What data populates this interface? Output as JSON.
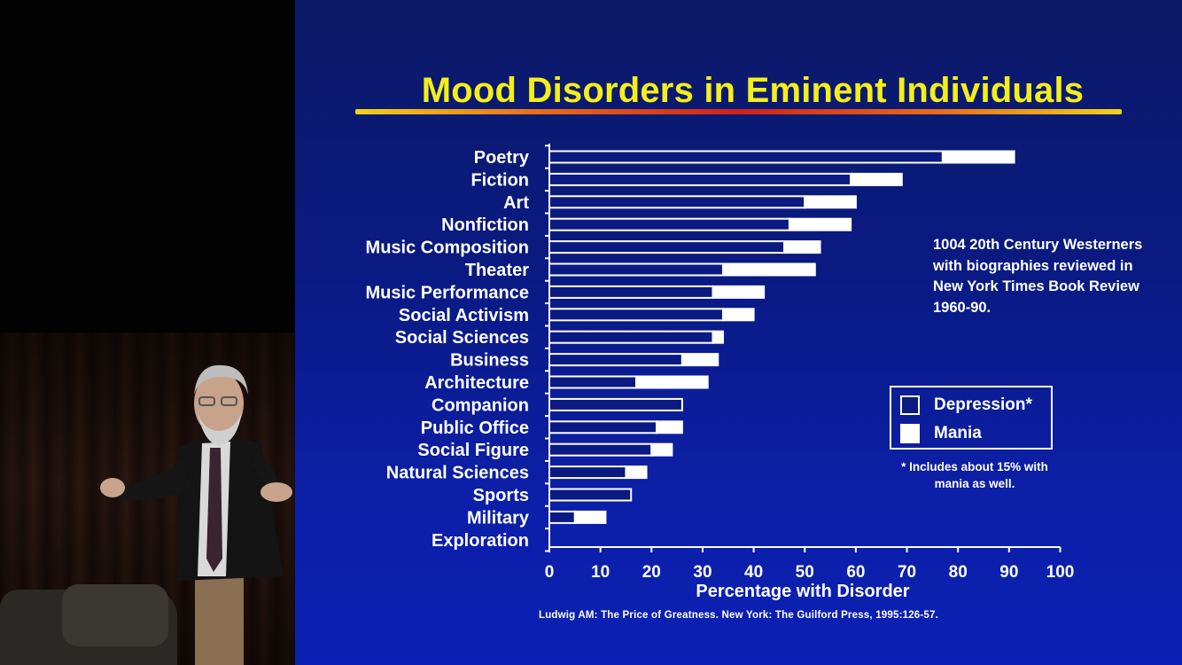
{
  "slide": {
    "title": "Mood Disorders in Eminent Individuals",
    "note": "1004 20th Century Westerners with biographies reviewed in New York Times Book Review 1960-90.",
    "legend": {
      "depression": "Depression*",
      "mania": "Mania"
    },
    "footnote": "* Includes about 15% with mania as well.",
    "citation": "Ludwig AM: The Price of Greatness. New York: The Guilford Press, 1995:126-57."
  },
  "colors": {
    "background": "#0a1a82",
    "title": "#f5ee1a",
    "depression": "#0a1a82",
    "mania": "#ffffff"
  },
  "chart_data": {
    "type": "bar",
    "orientation": "horizontal",
    "stacked": true,
    "categories": [
      "Poetry",
      "Fiction",
      "Art",
      "Nonfiction",
      "Music Composition",
      "Theater",
      "Music Performance",
      "Social Activism",
      "Social Sciences",
      "Business",
      "Architecture",
      "Companion",
      "Public Office",
      "Social Figure",
      "Natural Sciences",
      "Sports",
      "Military",
      "Exploration"
    ],
    "series": [
      {
        "name": "Depression*",
        "values": [
          77,
          59,
          50,
          47,
          46,
          34,
          32,
          34,
          32,
          26,
          17,
          26,
          21,
          20,
          15,
          16,
          5,
          0
        ]
      },
      {
        "name": "Mania",
        "values": [
          14,
          10,
          10,
          12,
          7,
          18,
          10,
          6,
          2,
          7,
          14,
          0,
          5,
          4,
          4,
          0,
          6,
          0
        ]
      }
    ],
    "xlabel": "Percentage with Disorder",
    "ylabel": "",
    "xlim": [
      0,
      100
    ],
    "xticks": [
      0,
      10,
      20,
      30,
      40,
      50,
      60,
      70,
      80,
      90,
      100
    ],
    "grid": false,
    "legend_position": "right"
  }
}
